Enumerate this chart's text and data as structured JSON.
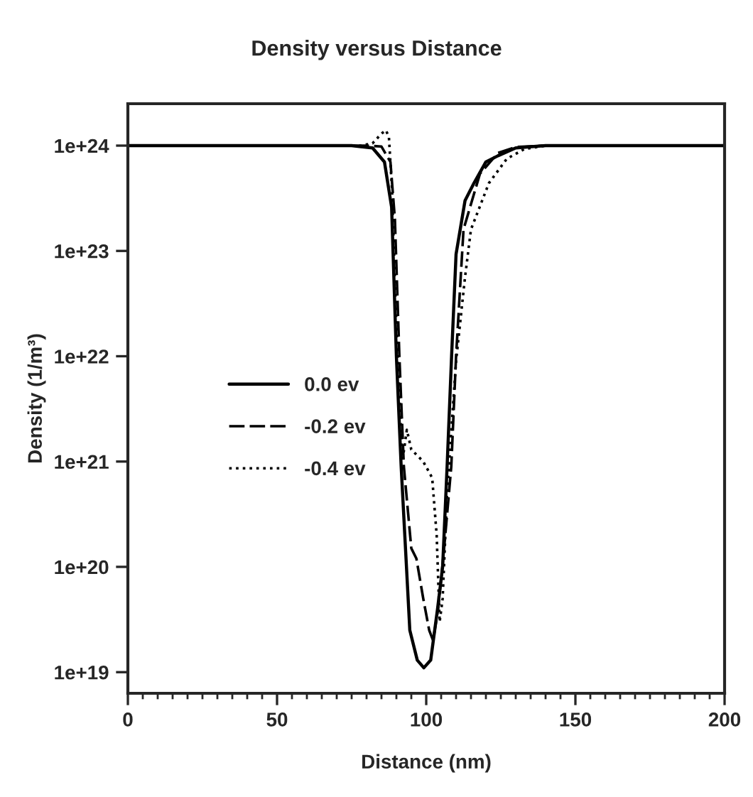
{
  "chart_data": {
    "type": "line",
    "title": "Density versus Distance",
    "xlabel": "Distance (nm)",
    "ylabel": "Density (1/m³)",
    "log": "y",
    "xlim": [
      0,
      200
    ],
    "xticks": [
      0,
      50,
      100,
      150,
      200
    ],
    "ylim": [
      6.3e+18,
      2.5e+24
    ],
    "yticks": [
      {
        "value": 1e+19,
        "label": "1e+19"
      },
      {
        "value": 1e+20,
        "label": "1e+20"
      },
      {
        "value": 1e+21,
        "label": "1e+21"
      },
      {
        "value": 1e+22,
        "label": "1e+22"
      },
      {
        "value": 1e+23,
        "label": "1e+23"
      },
      {
        "value": 1e+24,
        "label": "1e+24"
      }
    ],
    "grid": false,
    "legend": "left",
    "marker": "none",
    "series": [
      {
        "name": "0.0 ev",
        "color": "#000000",
        "line_style": "solid",
        "x": [
          0,
          75,
          82,
          86,
          88.4,
          90,
          91.6,
          94.5,
          97,
          99.2,
          101.5,
          103.8,
          105.5,
          107,
          108.5,
          110,
          113,
          116,
          120,
          124,
          130,
          140,
          200
        ],
        "values": [
          1e+24,
          1e+24,
          9.5e+23,
          7e+23,
          2.6e+23,
          1e+22,
          9e+20,
          2.5e+19,
          1.3e+19,
          1.1e+19,
          1.3e+19,
          4e+19,
          1e+20,
          9e+20,
          1e+22,
          9.3e+22,
          3e+23,
          4.4e+23,
          7e+23,
          8e+23,
          9.5e+23,
          1e+24,
          1e+24
        ]
      },
      {
        "name": "-0.2 ev",
        "color": "#000000",
        "line_style": "dashed",
        "x": [
          0,
          80,
          85,
          88,
          89.5,
          91,
          92.5,
          95,
          96.7,
          99,
          101,
          102.3,
          104,
          106,
          108.4,
          110,
          112.5,
          118,
          124,
          130,
          140,
          200
        ],
        "values": [
          1e+24,
          1e+24,
          9.8e+23,
          7e+23,
          2e+23,
          1e+22,
          9e+20,
          1.5e+20,
          1.2e+20,
          5e+19,
          2.5e+19,
          2e+19,
          4e+19,
          1.5e+20,
          9e+20,
          1e+22,
          1.6e+23,
          5.4e+23,
          8.5e+23,
          9.7e+23,
          1e+24,
          1e+24
        ]
      },
      {
        "name": "-0.4 ev",
        "color": "#000000",
        "line_style": "dotted",
        "x": [
          0,
          78,
          82,
          85,
          86.5,
          87.5,
          88.5,
          90,
          92,
          93.5,
          95,
          99,
          102,
          103.5,
          104.5,
          105.5,
          107,
          110,
          113,
          115,
          121,
          127,
          133,
          140,
          200
        ],
        "values": [
          1e+24,
          1e+24,
          1.05e+24,
          1.3e+24,
          1.4e+24,
          1.2e+24,
          4e+23,
          2e+22,
          1e+21,
          2e+21,
          1.3e+21,
          1e+21,
          7e+20,
          2e+20,
          3e+19,
          5e+19,
          5e+20,
          9e+21,
          5.6e+22,
          1.6e+23,
          4.4e+23,
          7.5e+23,
          9.3e+23,
          1e+24,
          1e+24
        ]
      }
    ]
  }
}
